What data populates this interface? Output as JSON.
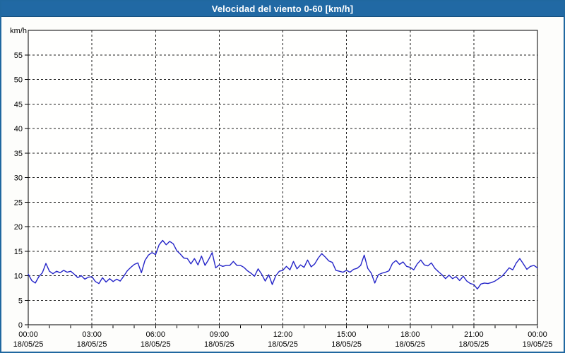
{
  "window": {
    "title": "Velocidad del viento 0-60 [km/h]",
    "titlebar_color": "#2169a4",
    "border_color": "#2068a0",
    "background_color": "#fdfdfb"
  },
  "chart_data": {
    "type": "line",
    "title": "Velocidad del viento 0-60 [km/h]",
    "ylabel": "km/h",
    "unit_label": "km/h",
    "series_name": "Velocidad del viento",
    "ylim": [
      0,
      60
    ],
    "xlim_hours": [
      0,
      24
    ],
    "grid": "dashed",
    "legend_position": "none",
    "line_color": "#2424c8",
    "grid_color": "#1b1b1b",
    "plot_bg_color": "#fffffe",
    "y_ticks": [
      0,
      5,
      10,
      15,
      20,
      25,
      30,
      35,
      40,
      45,
      50,
      55
    ],
    "x_ticks": [
      {
        "time": "00:00",
        "date": "18/05/25"
      },
      {
        "time": "03:00",
        "date": "18/05/25"
      },
      {
        "time": "06:00",
        "date": "18/05/25"
      },
      {
        "time": "09:00",
        "date": "18/05/25"
      },
      {
        "time": "12:00",
        "date": "18/05/25"
      },
      {
        "time": "15:00",
        "date": "18/05/25"
      },
      {
        "time": "18:00",
        "date": "18/05/25"
      },
      {
        "time": "21:00",
        "date": "18/05/25"
      },
      {
        "time": "00:00",
        "date": "19/05/25"
      }
    ],
    "x_minor_tick_hours": 1,
    "x_start_hour": 0,
    "x_step_minutes": 10,
    "values": [
      10.3,
      9.0,
      8.5,
      9.8,
      10.6,
      12.5,
      10.9,
      10.4,
      10.9,
      10.6,
      11.1,
      10.7,
      10.9,
      10.3,
      9.6,
      10.0,
      9.3,
      9.7,
      9.8,
      8.8,
      8.4,
      9.6,
      8.7,
      9.4,
      8.8,
      9.3,
      8.9,
      9.9,
      11.0,
      11.7,
      12.3,
      12.6,
      10.6,
      13.1,
      14.2,
      14.7,
      14.3,
      16.3,
      17.2,
      16.3,
      17.0,
      16.5,
      15.1,
      14.4,
      13.6,
      13.5,
      12.4,
      13.5,
      12.2,
      14.0,
      12.1,
      13.3,
      14.7,
      11.6,
      12.2,
      11.9,
      12.1,
      12.1,
      12.9,
      12.1,
      12.1,
      11.7,
      11.0,
      10.5,
      9.9,
      11.4,
      10.3,
      8.9,
      10.2,
      8.2,
      10.0,
      10.9,
      11.1,
      11.9,
      11.2,
      12.9,
      11.4,
      12.2,
      11.7,
      13.2,
      11.8,
      12.4,
      13.6,
      14.5,
      13.8,
      13.0,
      12.7,
      11.1,
      10.9,
      10.7,
      11.1,
      10.7,
      11.3,
      11.5,
      12.1,
      14.2,
      11.5,
      10.5,
      8.5,
      10.2,
      10.5,
      10.7,
      11.0,
      12.5,
      13.1,
      12.3,
      12.8,
      11.9,
      11.7,
      11.2,
      12.4,
      13.2,
      12.2,
      12.0,
      12.6,
      11.5,
      10.8,
      10.2,
      9.4,
      10.1,
      9.4,
      9.8,
      9.0,
      9.9,
      8.9,
      8.4,
      8.2,
      7.3,
      8.3,
      8.5,
      8.4,
      8.6,
      8.9,
      9.4,
      9.9,
      10.7,
      11.6,
      11.2,
      12.6,
      13.5,
      12.4,
      11.3,
      11.9,
      12.1,
      11.6
    ]
  }
}
